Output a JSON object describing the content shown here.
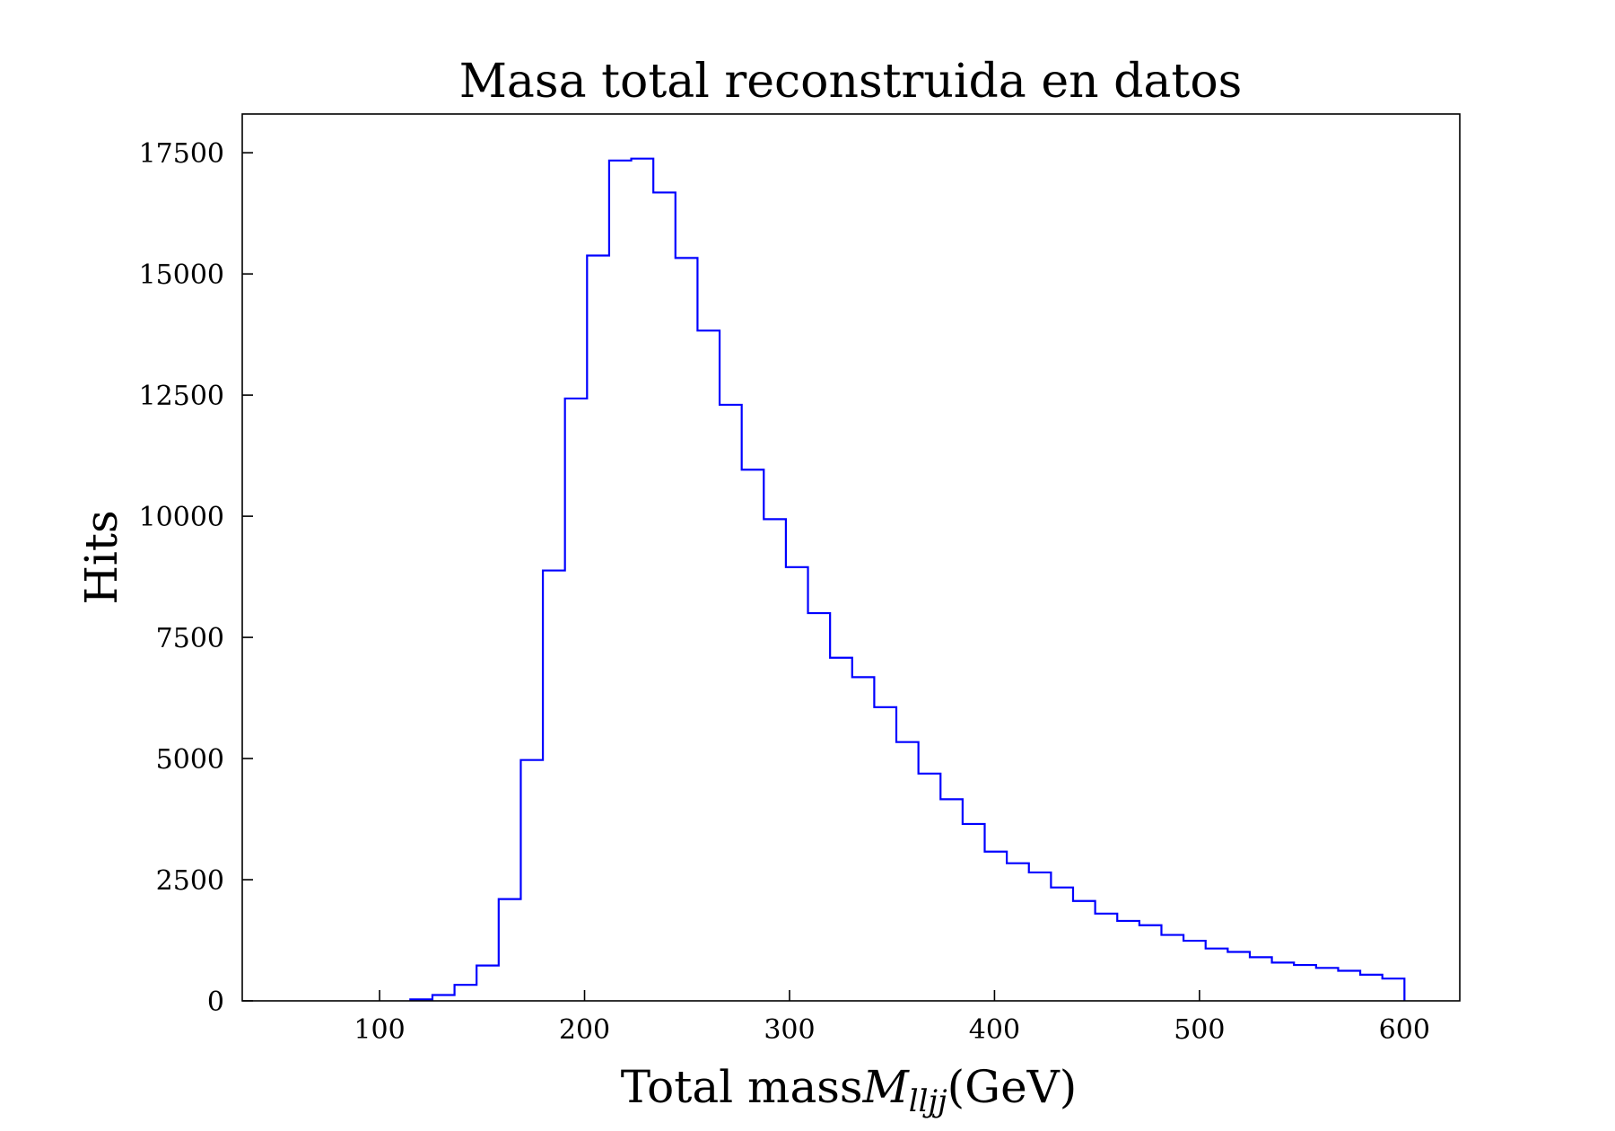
{
  "chart_data": {
    "type": "bar",
    "style": "step-histogram",
    "title": "Masa total reconstruida en datos",
    "xlabel": "Total mass",
    "xlabel_math": "M",
    "xlabel_math_sub": "lljj",
    "xlabel_unit": "(GeV)",
    "ylabel": "Hits",
    "xlim": [
      33,
      627
    ],
    "ylim": [
      0,
      18300
    ],
    "xticks": [
      100,
      200,
      300,
      400,
      500,
      600
    ],
    "yticks": [
      0,
      2500,
      5000,
      7500,
      10000,
      12500,
      15000,
      17500
    ],
    "grid": false,
    "legend": "none",
    "line_color": "#0000ff",
    "bin_edges": [
      115,
      125.78,
      136.56,
      147.33,
      158.11,
      168.89,
      179.67,
      190.44,
      201.22,
      212,
      222.78,
      233.56,
      244.33,
      255.11,
      265.89,
      276.67,
      287.44,
      298.22,
      309,
      319.78,
      330.56,
      341.33,
      352.11,
      362.89,
      373.67,
      384.44,
      395.22,
      406,
      416.78,
      427.56,
      438.33,
      449.11,
      459.89,
      470.67,
      481.44,
      492.22,
      503,
      513.78,
      524.56,
      535.33,
      546.11,
      556.89,
      567.67,
      578.44,
      589.22,
      600
    ],
    "values": [
      30,
      120,
      330,
      730,
      2100,
      4970,
      8880,
      12430,
      15380,
      17340,
      17380,
      16680,
      15330,
      13830,
      12300,
      10960,
      9940,
      8950,
      8000,
      7080,
      6680,
      6060,
      5340,
      4690,
      4160,
      3650,
      3080,
      2840,
      2650,
      2340,
      2060,
      1800,
      1650,
      1560,
      1360,
      1240,
      1080,
      1010,
      900,
      790,
      740,
      680,
      620,
      540,
      460
    ]
  }
}
